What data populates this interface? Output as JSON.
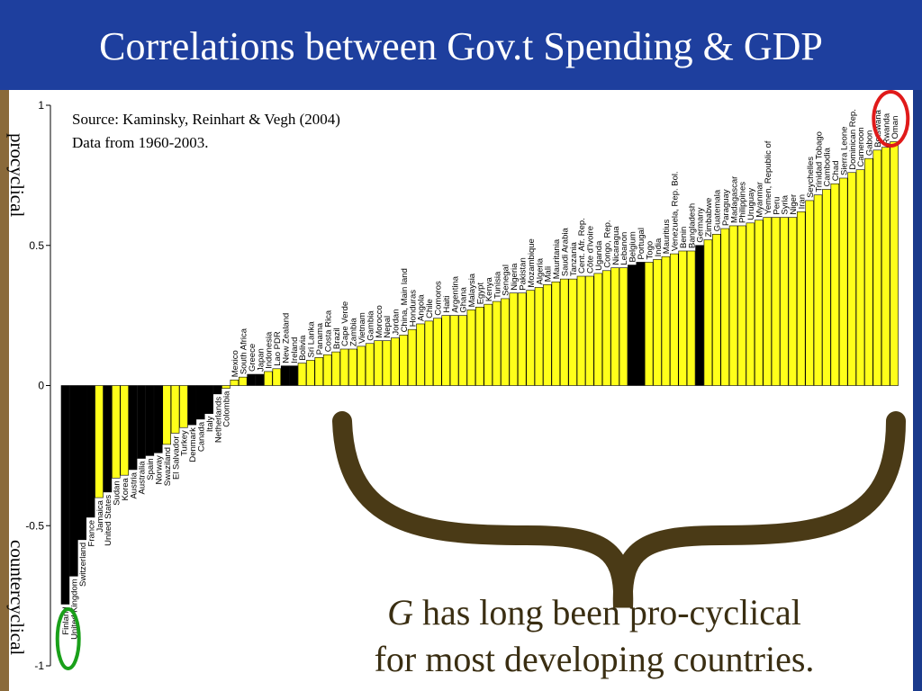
{
  "title": "Correlations between Gov.t Spending & GDP",
  "source_line1": "Source: Kaminsky, Reinhart & Vegh (2004)",
  "source_line2": "Data from 1960-2003.",
  "label_procyclical": "procyclical",
  "label_countercyclical": "countercyclical",
  "note_g": "G",
  "note_line1_rest": " has long been pro-cyclical",
  "note_line2": "for most developing countries.",
  "colors": {
    "yellow": "#ffff1a",
    "black": "#000000",
    "brace": "#4a3a16",
    "green_circle": "#1aa01a",
    "red_circle": "#e01a1a"
  },
  "chart_data": {
    "type": "bar",
    "ylim": [
      -1,
      1
    ],
    "yticks": [
      "1",
      "0.5",
      "0",
      "-0.5",
      "-1"
    ],
    "ytick_values": [
      1,
      0.5,
      0,
      -0.5,
      -1
    ],
    "categories": [
      "Finland",
      "United Kingdom",
      "Switzerland",
      "France",
      "Jamaica",
      "United States",
      "Sudan",
      "Korea",
      "Austria",
      "Australia",
      "Spain",
      "Norway",
      "Swaziland",
      "El Salvador",
      "Turkey",
      "Denmark",
      "Canada",
      "Italy",
      "Netherlands",
      "Colombia",
      "Mexico",
      "South Africa",
      "Greece",
      "Japan",
      "Indonesia",
      "Lao PDR",
      "New Zealand",
      "Ireland",
      "Bolivia",
      "Sri Lanka",
      "Panama",
      "Costa Rica",
      "Brazil",
      "Cape Verde",
      "Zambia",
      "Vietnam",
      "Gambia",
      "Morocco",
      "Nepal",
      "Jordan",
      "China, Main land",
      "Honduras",
      "Angola",
      "Chile",
      "Comoros",
      "Haiti",
      "Argentina",
      "Ghana",
      "Malaysia",
      "Egypt",
      "Kenya",
      "Tunisia",
      "Senegal",
      "Nigeria",
      "Pakistan",
      "Mozambique",
      "Algeria",
      "Mali",
      "Mauritania",
      "Saudi Arabia",
      "Tanzania",
      "Cent. Afr. Rep.",
      "Côte d'Ivoire",
      "Uganda",
      "Congo, Rep.",
      "Nicaragua",
      "Lebanon",
      "Belgium",
      "Portugal",
      "Togo",
      "India",
      "Mauritius",
      "Venezuela, Rep. Bol.",
      "Benin",
      "Bangladesh",
      "Germany",
      "Zimbabwe",
      "Guatemala",
      "Paraguay",
      "Madagascar",
      "Philippines",
      "Uruguay",
      "Myanmar",
      "Yemen, Republic of",
      "Peru",
      "Syria",
      "Niger",
      "Iran",
      "Seychelles",
      "Trinidad Tobago",
      "Cambodia",
      "Chad",
      "Sierra Leone",
      "Dominican Rep.",
      "Cameroon",
      "Gabon",
      "Botswana",
      "Rwanda",
      "Oman"
    ],
    "values": [
      -0.78,
      -0.68,
      -0.55,
      -0.47,
      -0.4,
      -0.38,
      -0.33,
      -0.32,
      -0.3,
      -0.26,
      -0.25,
      -0.24,
      -0.21,
      -0.17,
      -0.15,
      -0.14,
      -0.12,
      -0.1,
      -0.03,
      -0.01,
      0.02,
      0.03,
      0.04,
      0.04,
      0.05,
      0.06,
      0.07,
      0.07,
      0.08,
      0.09,
      0.1,
      0.11,
      0.12,
      0.13,
      0.13,
      0.14,
      0.15,
      0.16,
      0.16,
      0.17,
      0.18,
      0.2,
      0.22,
      0.23,
      0.24,
      0.25,
      0.25,
      0.25,
      0.27,
      0.28,
      0.29,
      0.3,
      0.31,
      0.33,
      0.33,
      0.34,
      0.35,
      0.36,
      0.37,
      0.38,
      0.38,
      0.39,
      0.39,
      0.4,
      0.41,
      0.42,
      0.42,
      0.43,
      0.44,
      0.44,
      0.45,
      0.46,
      0.47,
      0.48,
      0.48,
      0.5,
      0.52,
      0.54,
      0.56,
      0.57,
      0.57,
      0.58,
      0.59,
      0.6,
      0.6,
      0.6,
      0.6,
      0.62,
      0.66,
      0.68,
      0.7,
      0.72,
      0.74,
      0.76,
      0.77,
      0.81,
      0.84,
      0.85,
      0.87
    ],
    "bar_colors": [
      "black",
      "black",
      "black",
      "black",
      "yellow",
      "black",
      "yellow",
      "yellow",
      "black",
      "black",
      "black",
      "black",
      "yellow",
      "yellow",
      "yellow",
      "black",
      "black",
      "black",
      "black",
      "yellow",
      "yellow",
      "yellow",
      "black",
      "black",
      "yellow",
      "yellow",
      "black",
      "black",
      "yellow",
      "yellow",
      "yellow",
      "yellow",
      "yellow",
      "yellow",
      "yellow",
      "yellow",
      "yellow",
      "yellow",
      "yellow",
      "yellow",
      "yellow",
      "yellow",
      "yellow",
      "yellow",
      "yellow",
      "yellow",
      "yellow",
      "yellow",
      "yellow",
      "yellow",
      "yellow",
      "yellow",
      "yellow",
      "yellow",
      "yellow",
      "yellow",
      "yellow",
      "yellow",
      "yellow",
      "yellow",
      "yellow",
      "yellow",
      "yellow",
      "yellow",
      "yellow",
      "yellow",
      "yellow",
      "black",
      "black",
      "yellow",
      "yellow",
      "yellow",
      "yellow",
      "yellow",
      "yellow",
      "black",
      "yellow",
      "yellow",
      "yellow",
      "yellow",
      "yellow",
      "yellow",
      "yellow",
      "yellow",
      "yellow",
      "yellow",
      "yellow",
      "yellow",
      "yellow",
      "yellow",
      "yellow",
      "yellow",
      "yellow",
      "yellow",
      "yellow",
      "yellow",
      "yellow",
      "yellow",
      "yellow"
    ]
  }
}
